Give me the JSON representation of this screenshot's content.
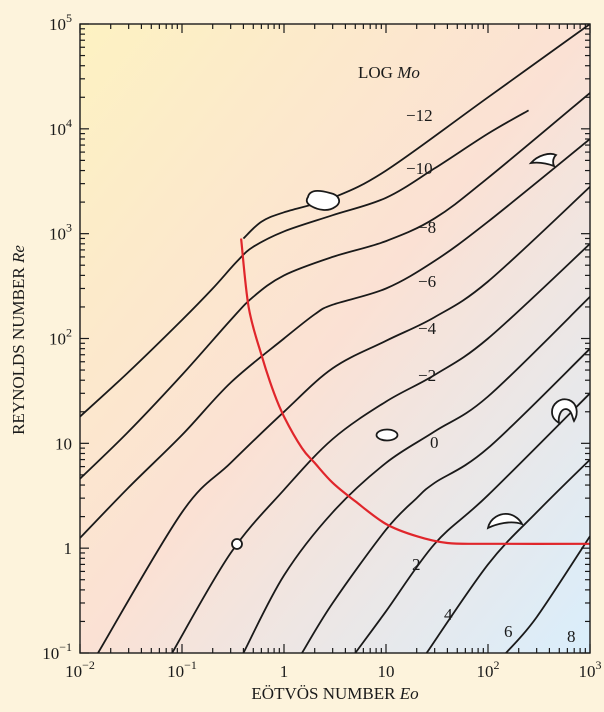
{
  "chart_data": {
    "type": "line",
    "title": "",
    "xlabel_prefix": "EÖTVÖS NUMBER ",
    "xlabel_symbol": "Eo",
    "ylabel_prefix": "REYNOLDS NUMBER ",
    "ylabel_symbol": "Re",
    "x_scale": "log",
    "y_scale": "log",
    "xlim": [
      0.01,
      1000
    ],
    "ylim": [
      0.1,
      100000
    ],
    "grid": false,
    "x_ticks": [
      {
        "value": 0.01,
        "base": "10",
        "exp": "−2"
      },
      {
        "value": 0.1,
        "base": "10",
        "exp": "−1"
      },
      {
        "value": 1,
        "base": "1",
        "exp": ""
      },
      {
        "value": 10,
        "base": "10",
        "exp": ""
      },
      {
        "value": 100,
        "base": "10",
        "exp": "2"
      },
      {
        "value": 1000,
        "base": "10",
        "exp": "3"
      }
    ],
    "y_ticks": [
      {
        "value": 0.1,
        "base": "10",
        "exp": "−1"
      },
      {
        "value": 1,
        "base": "1",
        "exp": ""
      },
      {
        "value": 10,
        "base": "10",
        "exp": ""
      },
      {
        "value": 100,
        "base": "10",
        "exp": "2"
      },
      {
        "value": 1000,
        "base": "10",
        "exp": "3"
      },
      {
        "value": 10000,
        "base": "10",
        "exp": "4"
      },
      {
        "value": 100000,
        "base": "10",
        "exp": "5"
      }
    ],
    "legend_title_prefix": "LOG ",
    "legend_title_symbol": "Mo",
    "series": [
      {
        "label": "−12",
        "points": [
          [
            0.4,
            900
          ],
          [
            0.6,
            1300
          ],
          [
            1,
            1600
          ],
          [
            3,
            2200
          ],
          [
            10,
            4000
          ],
          [
            100,
            20000
          ],
          [
            1000,
            100000
          ]
        ]
      },
      {
        "label": "−10",
        "points": [
          [
            0.01,
            18
          ],
          [
            0.03,
            48
          ],
          [
            0.1,
            150
          ],
          [
            0.2,
            300
          ],
          [
            0.35,
            550
          ],
          [
            0.5,
            750
          ],
          [
            1,
            1050
          ],
          [
            3,
            1500
          ],
          [
            10,
            2200
          ],
          [
            30,
            4200
          ],
          [
            100,
            9000
          ],
          [
            250,
            15000
          ]
        ]
      },
      {
        "label": "−8",
        "points": [
          [
            0.01,
            4.6
          ],
          [
            0.03,
            13
          ],
          [
            0.1,
            45
          ],
          [
            0.3,
            150
          ],
          [
            0.5,
            250
          ],
          [
            1,
            400
          ],
          [
            3,
            600
          ],
          [
            10,
            850
          ],
          [
            30,
            1400
          ],
          [
            100,
            3400
          ],
          [
            1000,
            22000
          ]
        ]
      },
      {
        "label": "−6",
        "points": [
          [
            0.01,
            1.25
          ],
          [
            0.03,
            3.8
          ],
          [
            0.1,
            12
          ],
          [
            0.3,
            38
          ],
          [
            1,
            100
          ],
          [
            2,
            170
          ],
          [
            3,
            210
          ],
          [
            10,
            300
          ],
          [
            30,
            550
          ],
          [
            100,
            1300
          ],
          [
            1000,
            8000
          ]
        ]
      },
      {
        "label": "−4",
        "points": [
          [
            0.015,
            0.1
          ],
          [
            0.1,
            2.2
          ],
          [
            0.3,
            6.5
          ],
          [
            1,
            20
          ],
          [
            3,
            52
          ],
          [
            10,
            95
          ],
          [
            30,
            160
          ],
          [
            100,
            350
          ],
          [
            1000,
            2800
          ]
        ]
      },
      {
        "label": "−2",
        "points": [
          [
            0.08,
            0.1
          ],
          [
            0.3,
            0.9
          ],
          [
            1,
            3.6
          ],
          [
            3,
            11
          ],
          [
            10,
            25
          ],
          [
            30,
            45
          ],
          [
            100,
            100
          ],
          [
            1000,
            800
          ]
        ]
      },
      {
        "label": "0",
        "points": [
          [
            0.4,
            0.1
          ],
          [
            1,
            0.55
          ],
          [
            3,
            2.2
          ],
          [
            10,
            6.5
          ],
          [
            30,
            13
          ],
          [
            100,
            28
          ],
          [
            1000,
            250
          ]
        ]
      },
      {
        "label": "2",
        "points": [
          [
            1.5,
            0.1
          ],
          [
            3,
            0.3
          ],
          [
            10,
            1.5
          ],
          [
            20,
            3
          ],
          [
            30,
            4.2
          ],
          [
            100,
            9
          ],
          [
            1000,
            80
          ]
        ]
      },
      {
        "label": "4",
        "points": [
          [
            5,
            0.1
          ],
          [
            10,
            0.25
          ],
          [
            30,
            1.1
          ],
          [
            100,
            3.2
          ],
          [
            1000,
            30
          ]
        ]
      },
      {
        "label": "6",
        "points": [
          [
            25,
            0.1
          ],
          [
            100,
            0.7
          ],
          [
            300,
            2.2
          ],
          [
            1000,
            7
          ]
        ]
      },
      {
        "label": "8",
        "points": [
          [
            150,
            0.1
          ],
          [
            300,
            0.22
          ],
          [
            1000,
            1.3
          ]
        ]
      }
    ],
    "regime_boundary": {
      "color": "#e0262b",
      "points": [
        [
          0.38,
          900
        ],
        [
          0.45,
          200
        ],
        [
          0.6,
          70
        ],
        [
          0.8,
          30
        ],
        [
          1,
          18
        ],
        [
          1.5,
          9
        ],
        [
          2,
          6.5
        ],
        [
          3,
          4.2
        ],
        [
          5,
          2.8
        ],
        [
          10,
          1.7
        ],
        [
          20,
          1.3
        ],
        [
          40,
          1.12
        ],
        [
          100,
          1.1
        ],
        [
          1000,
          1.1
        ]
      ]
    },
    "colors": {
      "background_top_left": "#fdf0c0",
      "background_middle": "#fbe0d2",
      "background_bottom_right": "#dcefff",
      "curves": "#1a1a1a",
      "boundary": "#e0262b"
    }
  }
}
